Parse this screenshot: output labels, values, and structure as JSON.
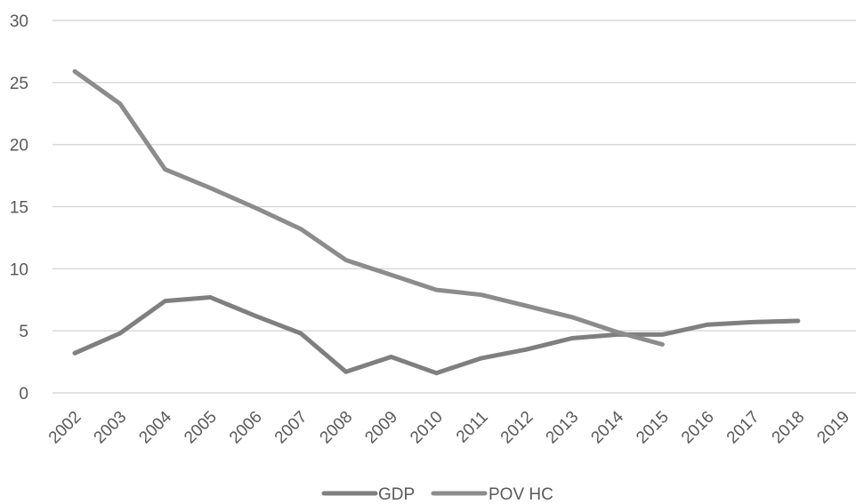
{
  "chart_data": {
    "type": "line",
    "title": "",
    "xlabel": "",
    "ylabel": "",
    "categories": [
      "2002",
      "2003",
      "2004",
      "2005",
      "2006",
      "2007",
      "2008",
      "2009",
      "2010",
      "2011",
      "2012",
      "2013",
      "2014",
      "2015",
      "2016",
      "2017",
      "2018",
      "2019"
    ],
    "ylim": [
      0,
      30
    ],
    "yticks": [
      0,
      5,
      10,
      15,
      20,
      25,
      30
    ],
    "grid": true,
    "legend_position": "bottom",
    "series": [
      {
        "name": "GDP",
        "color": "#7f7f7f",
        "values": [
          3.2,
          4.8,
          7.4,
          7.7,
          6.2,
          4.8,
          1.7,
          2.9,
          1.6,
          2.8,
          3.5,
          4.4,
          4.7,
          4.7,
          5.5,
          5.7,
          5.8,
          null
        ]
      },
      {
        "name": "POV  HC",
        "color": "#8c8c8c",
        "values": [
          25.9,
          23.3,
          18.0,
          16.5,
          14.9,
          13.2,
          10.7,
          9.5,
          8.3,
          7.9,
          7.0,
          6.1,
          4.9,
          3.9,
          null,
          null,
          null,
          null
        ]
      }
    ]
  }
}
